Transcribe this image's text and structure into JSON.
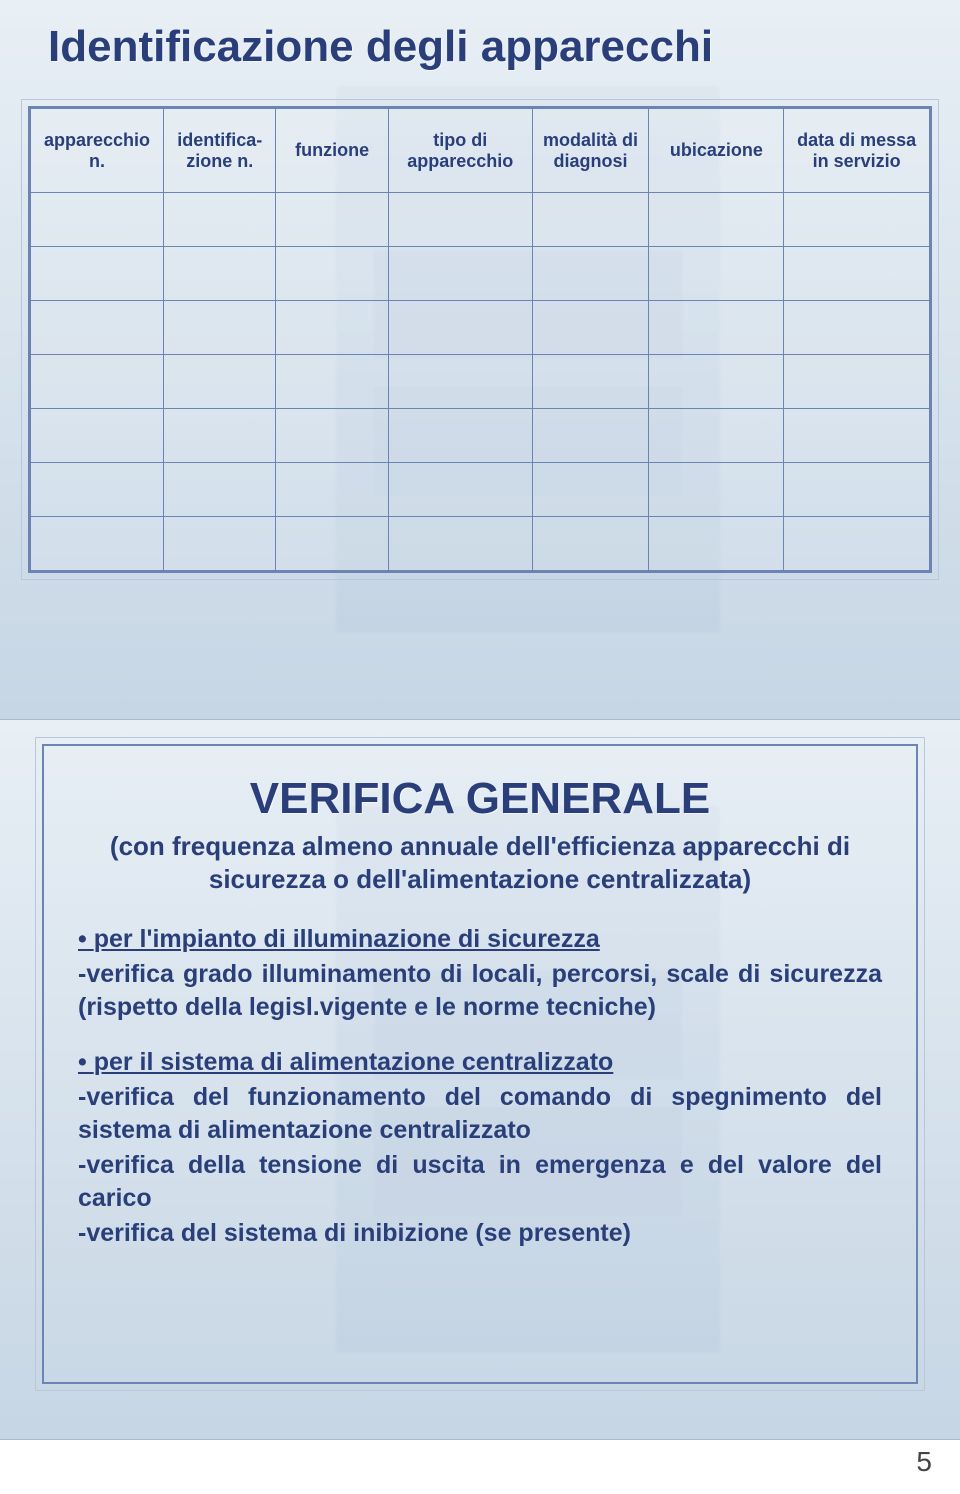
{
  "slide1": {
    "title": "Identificazione degli apparecchi",
    "title_color": "#2a3f7a",
    "title_fontsize": 44,
    "border_color": "#6b84b4",
    "outline_color": "#b9c7dd",
    "columns": [
      "apparecchio n.",
      "identifica-zione n.",
      "funzione",
      "tipo di apparecchio",
      "modalità di diagnosi",
      "ubicazione",
      "data di messa in servizio"
    ],
    "blank_rows": 7
  },
  "slide2": {
    "heading": "VERIFICA GENERALE",
    "subtitle": "(con frequenza almeno annuale dell'efficienza apparecchi di sicurezza o dell'alimentazione centralizzata)",
    "text_color": "#2a3f7a",
    "bullets": [
      {
        "lead_underlined": "per l'impianto di illuminazione di sicurezza",
        "lines": [
          "-verifica grado illuminamento di locali, percorsi, scale di sicurezza (rispetto della legisl.vigente e le norme tecniche)"
        ]
      },
      {
        "lead_underlined": "per il sistema di alimentazione centralizzato",
        "lines": [
          "-verifica del funzionamento del comando di spegnimento del sistema di alimentazione centralizzato",
          "-verifica della tensione di uscita in emergenza e del valore del carico",
          "-verifica del sistema di inibizione (se presente)"
        ]
      }
    ]
  },
  "page_number": "5",
  "bg": {
    "gradient_top": "#e8eff5",
    "gradient_mid": "#d4e0eb",
    "gradient_bot": "#c6d6e4"
  }
}
